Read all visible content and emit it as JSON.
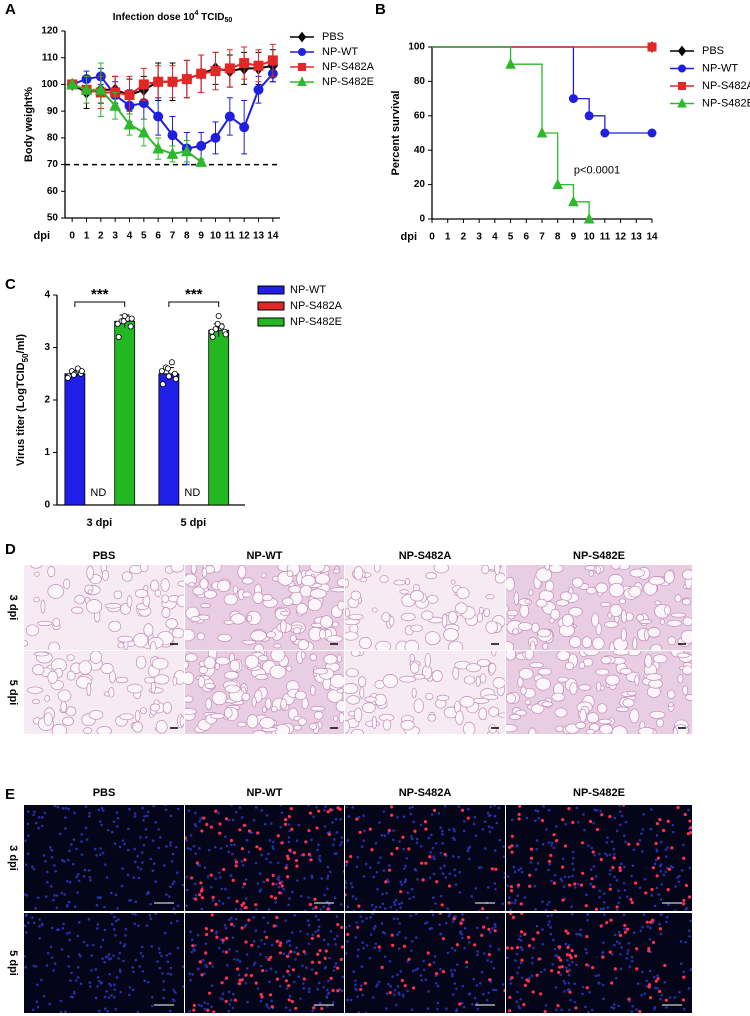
{
  "chart_data": [
    {
      "type": "line",
      "panel": "A",
      "title": "Infection dose 10",
      "title_sup": "4",
      "title_mid": " TCID",
      "title_sub": "50",
      "ylabel": "Body weight%",
      "xlabel": "dpi",
      "x": [
        0,
        1,
        2,
        3,
        4,
        5,
        6,
        7,
        8,
        9,
        10,
        11,
        12,
        13,
        14
      ],
      "xlim": [
        -0.5,
        14.5
      ],
      "xticks": [
        0,
        1,
        2,
        3,
        4,
        5,
        6,
        7,
        8,
        9,
        10,
        11,
        12,
        13,
        14
      ],
      "ylim": [
        50,
        120
      ],
      "yticks": [
        50,
        60,
        70,
        80,
        90,
        100,
        110,
        120
      ],
      "threshold": 70,
      "series": [
        {
          "name": "PBS",
          "color": "#000000",
          "marker": "diamond",
          "values": [
            100,
            97,
            98,
            98,
            96,
            98,
            101,
            101,
            102,
            104,
            106,
            105,
            106,
            106,
            107
          ],
          "errors": [
            1,
            6,
            5,
            5,
            6,
            5,
            7,
            7,
            7,
            7,
            6,
            6,
            6,
            6,
            6
          ]
        },
        {
          "name": "NP-WT",
          "color": "#1f1fe0",
          "marker": "circle",
          "values": [
            100,
            102,
            103,
            96,
            92,
            93,
            88,
            81,
            76,
            77,
            80,
            88,
            84,
            98,
            104
          ],
          "errors": [
            1,
            3,
            3,
            5,
            6,
            6,
            7,
            7,
            6,
            5,
            6,
            7,
            10,
            5,
            3
          ]
        },
        {
          "name": "NP-S482A",
          "color": "#e32626",
          "marker": "square",
          "values": [
            100,
            98,
            97,
            97,
            96,
            100,
            101,
            101,
            102,
            104,
            105,
            106,
            108,
            107,
            109
          ],
          "errors": [
            1,
            5,
            6,
            6,
            7,
            6,
            6,
            6,
            7,
            7,
            7,
            7,
            6,
            6,
            6
          ]
        },
        {
          "name": "NP-S482E",
          "color": "#2db82d",
          "marker": "triangle",
          "values": [
            100,
            98,
            98,
            92,
            85,
            82,
            76,
            74,
            75,
            71,
            null,
            null,
            null,
            null,
            null
          ],
          "errors": [
            1,
            5,
            10,
            5,
            4,
            5,
            4,
            3,
            4,
            1,
            null,
            null,
            null,
            null,
            null
          ]
        }
      ]
    },
    {
      "type": "step",
      "panel": "B",
      "ylabel": "Percent survival",
      "xlabel": "dpi",
      "annotation": "p<0.0001",
      "xlim": [
        0,
        14
      ],
      "xticks": [
        0,
        1,
        2,
        3,
        4,
        5,
        6,
        7,
        8,
        9,
        10,
        11,
        12,
        13,
        14
      ],
      "ylim": [
        0,
        100
      ],
      "yticks": [
        0,
        20,
        40,
        60,
        80,
        100
      ],
      "series": [
        {
          "name": "PBS",
          "color": "#000000",
          "marker": "diamond",
          "x": [
            0,
            14
          ],
          "values": [
            100,
            100
          ]
        },
        {
          "name": "NP-WT",
          "color": "#1f1fe0",
          "marker": "circle",
          "x": [
            0,
            9,
            10,
            11,
            14
          ],
          "values": [
            100,
            70,
            60,
            50,
            50
          ]
        },
        {
          "name": "NP-S482A",
          "color": "#e32626",
          "marker": "square",
          "x": [
            0,
            14
          ],
          "values": [
            100,
            100
          ]
        },
        {
          "name": "NP-S482E",
          "color": "#2db82d",
          "marker": "triangle",
          "x": [
            0,
            5,
            7,
            8,
            9,
            10
          ],
          "values": [
            100,
            90,
            50,
            20,
            10,
            0
          ]
        }
      ]
    },
    {
      "type": "bar",
      "panel": "C",
      "ylabel": "Virus titer (LogTCID",
      "ylabel_sub": "50",
      "ylabel_end": "/ml)",
      "categories": [
        "3 dpi",
        "5 dpi"
      ],
      "ylim": [
        0,
        4
      ],
      "yticks": [
        0,
        1,
        2,
        3,
        4
      ],
      "significance": [
        "***",
        "***"
      ],
      "series": [
        {
          "name": "NP-WT",
          "color": "#1f1fe8",
          "values": [
            2.5,
            2.5
          ],
          "errors": [
            0.06,
            0.12
          ],
          "points": [
            [
              2.45,
              2.5,
              2.55,
              2.6,
              2.5,
              2.42,
              2.55,
              2.48
            ],
            [
              2.3,
              2.5,
              2.62,
              2.72,
              2.45,
              2.55,
              2.4,
              2.6
            ]
          ]
        },
        {
          "name": "NP-S482A",
          "color": "#e02626",
          "values": [
            null,
            null
          ],
          "value_labels": [
            "ND",
            "ND"
          ]
        },
        {
          "name": "NP-S482E",
          "color": "#22b822",
          "values": [
            3.5,
            3.33
          ],
          "errors": [
            0.12,
            0.12
          ],
          "points": [
            [
              3.2,
              3.4,
              3.5,
              3.55,
              3.6,
              3.45,
              3.55,
              3.5
            ],
            [
              3.2,
              3.3,
              3.35,
              3.4,
              3.6,
              3.3,
              3.25,
              3.45
            ]
          ]
        }
      ]
    }
  ],
  "panels": [
    {
      "label": "D",
      "style": "histology",
      "columns": [
        "PBS",
        "NP-WT",
        "NP-S482A",
        "NP-S482E"
      ],
      "rows": [
        "3 dpi",
        "5 dpi"
      ]
    },
    {
      "label": "E",
      "style": "fluorescence",
      "columns": [
        "PBS",
        "NP-WT",
        "NP-S482A",
        "NP-S482E"
      ],
      "rows": [
        "3 dpi",
        "5 dpi"
      ]
    }
  ]
}
